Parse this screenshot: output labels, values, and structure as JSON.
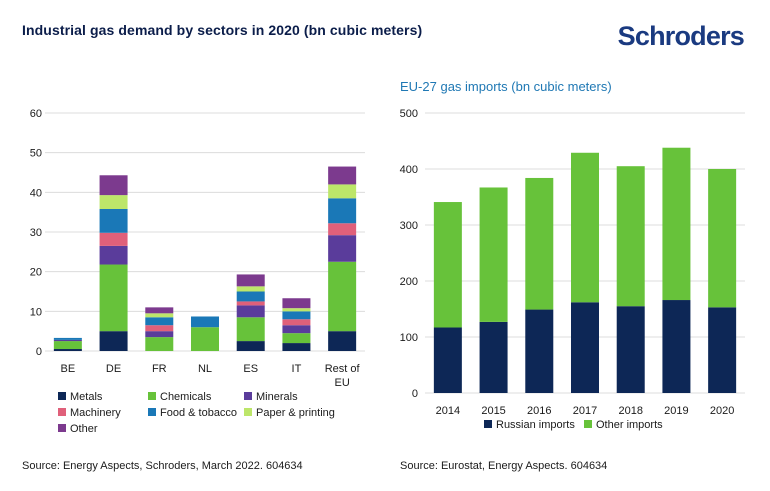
{
  "header": {
    "title": "Industrial gas demand by sectors in 2020 (bn cubic meters)",
    "logo": "Schroders"
  },
  "colors": {
    "metals": "#0d2756",
    "chemicals": "#67c23a",
    "minerals": "#5a3c9b",
    "machinery": "#e0607a",
    "food_tobacco": "#1a78b7",
    "paper_printing": "#bde66a",
    "other": "#7c3a8e",
    "russian": "#0d2756",
    "other_imports": "#67c23a",
    "gridline": "#dcdcdc"
  },
  "chart_data": [
    {
      "type": "bar",
      "stacked": true,
      "title": "Industrial gas demand by sectors in 2020 (bn cubic meters)",
      "categories": [
        "BE",
        "DE",
        "FR",
        "NL",
        "ES",
        "IT",
        "Rest of EU"
      ],
      "ylim": [
        0,
        60
      ],
      "yticks": [
        0,
        10,
        20,
        30,
        40,
        50,
        60
      ],
      "grid": true,
      "legend_position": "bottom",
      "series": [
        {
          "name": "Metals",
          "key": "metals",
          "values": [
            0.5,
            5.0,
            0,
            0,
            2.5,
            2.0,
            5.0
          ]
        },
        {
          "name": "Chemicals",
          "key": "chemicals",
          "values": [
            2.0,
            16.8,
            3.5,
            6.0,
            6.0,
            2.5,
            17.5
          ]
        },
        {
          "name": "Minerals",
          "key": "minerals",
          "values": [
            0.3,
            4.7,
            1.5,
            0,
            3.0,
            2.0,
            6.7
          ]
        },
        {
          "name": "Machinery",
          "key": "machinery",
          "values": [
            0,
            3.3,
            1.5,
            0,
            1.0,
            1.5,
            3.0
          ]
        },
        {
          "name": "Food & tobacco",
          "key": "food_tobacco",
          "values": [
            0.5,
            6.0,
            2.0,
            2.7,
            2.5,
            2.0,
            6.3
          ]
        },
        {
          "name": "Paper & printing",
          "key": "paper_printing",
          "values": [
            0,
            3.5,
            1.0,
            0,
            1.3,
            0.8,
            3.5
          ]
        },
        {
          "name": "Other",
          "key": "other",
          "values": [
            0,
            5.0,
            1.5,
            0,
            3.0,
            2.5,
            4.5
          ]
        }
      ],
      "source": "Source: Energy Aspects, Schroders, March 2022. 604634"
    },
    {
      "type": "bar",
      "stacked": true,
      "title": "EU-27 gas imports (bn cubic meters)",
      "categories": [
        "2014",
        "2015",
        "2016",
        "2017",
        "2018",
        "2019",
        "2020"
      ],
      "ylim": [
        0,
        500
      ],
      "yticks": [
        0,
        100,
        200,
        300,
        400,
        500
      ],
      "grid": true,
      "legend_position": "bottom",
      "series": [
        {
          "name": "Russian imports",
          "key": "russian",
          "values": [
            117,
            127,
            149,
            162,
            155,
            166,
            153
          ]
        },
        {
          "name": "Other imports",
          "key": "other_imports",
          "values": [
            224,
            240,
            235,
            267,
            250,
            272,
            247
          ]
        }
      ],
      "source": "Source: Eurostat, Energy Aspects. 604634"
    }
  ]
}
